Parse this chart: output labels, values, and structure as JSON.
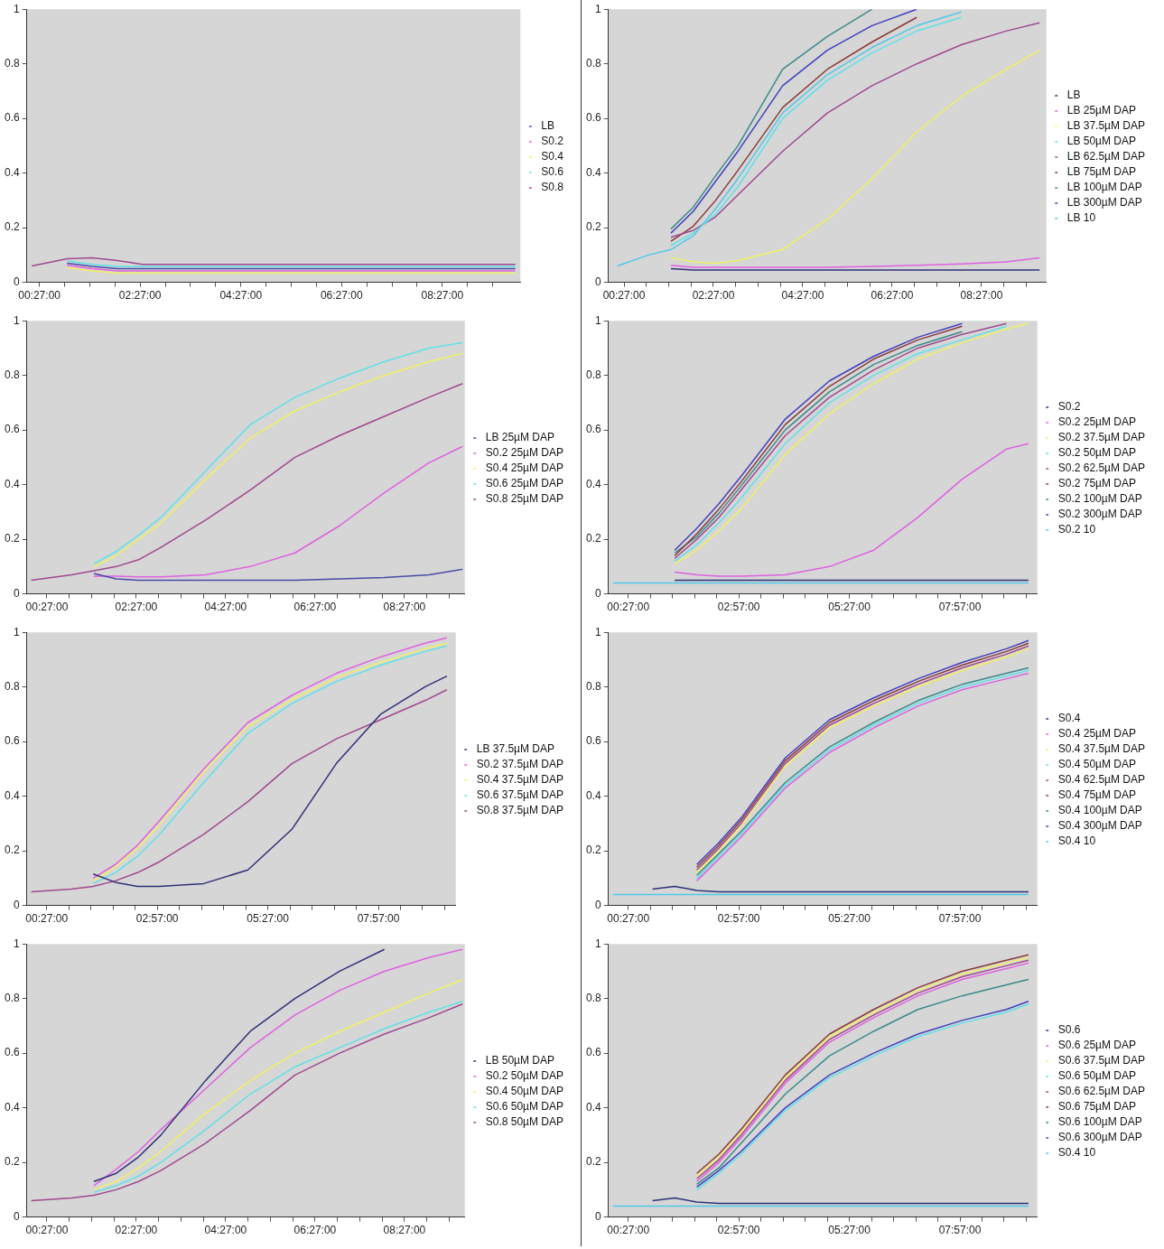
{
  "chart_data": [
    {
      "type": "line",
      "legend": "right",
      "grid": false,
      "marker": "none",
      "xlim": [
        0.2,
        10
      ],
      "ylim": [
        0,
        1
      ],
      "yticks": [
        0,
        0.2,
        0.4,
        0.6,
        0.8,
        1
      ],
      "xticks": [
        {
          "value": 0.45,
          "label": "00:27:00"
        },
        {
          "value": 0.95,
          "label": null
        },
        {
          "value": 1.45,
          "label": null
        },
        {
          "value": 1.95,
          "label": null
        },
        {
          "value": 2.45,
          "label": "02:27:00"
        },
        {
          "value": 2.95,
          "label": null
        },
        {
          "value": 3.45,
          "label": null
        },
        {
          "value": 3.95,
          "label": null
        },
        {
          "value": 4.45,
          "label": "04:27:00"
        },
        {
          "value": 4.95,
          "label": null
        },
        {
          "value": 5.45,
          "label": null
        },
        {
          "value": 5.95,
          "label": null
        },
        {
          "value": 6.45,
          "label": "06:27:00"
        },
        {
          "value": 6.95,
          "label": null
        },
        {
          "value": 7.45,
          "label": null
        },
        {
          "value": 7.95,
          "label": null
        },
        {
          "value": 8.45,
          "label": "08:27:00"
        },
        {
          "value": 8.95,
          "label": null
        },
        {
          "value": 9.45,
          "label": null
        }
      ],
      "x": [
        0.3,
        1,
        1.5,
        2,
        2.5,
        3,
        4,
        5,
        6,
        7,
        8,
        9,
        9.9
      ],
      "series": [
        {
          "name": "LB",
          "color": "#4a4aa8",
          "values": [
            null,
            0.07,
            0.058,
            0.05,
            0.05,
            0.05,
            0.05,
            0.05,
            0.05,
            0.05,
            0.05,
            0.05,
            0.05
          ]
        },
        {
          "name": "S0.2",
          "color": "#e060e0",
          "values": [
            null,
            0.062,
            0.05,
            0.042,
            0.042,
            0.042,
            0.042,
            0.042,
            0.042,
            0.042,
            0.042,
            0.042,
            0.042
          ]
        },
        {
          "name": "S0.4",
          "color": "#f0f060",
          "values": [
            null,
            0.054,
            0.042,
            0.034,
            0.034,
            0.034,
            0.034,
            0.034,
            0.034,
            0.034,
            0.034,
            0.034,
            0.034
          ]
        },
        {
          "name": "S0.6",
          "color": "#60e0e8",
          "values": [
            null,
            0.078,
            0.066,
            0.058,
            0.058,
            0.058,
            0.058,
            0.058,
            0.058,
            0.058,
            0.058,
            0.058,
            0.058
          ]
        },
        {
          "name": "S0.8",
          "color": "#a04890",
          "values": [
            0.06,
            0.086,
            0.09,
            0.08,
            0.066,
            0.066,
            0.066,
            0.066,
            0.066,
            0.066,
            0.066,
            0.066,
            0.066
          ]
        }
      ]
    },
    {
      "type": "line",
      "legend": "right",
      "grid": false,
      "marker": "none",
      "xlim": [
        0.1,
        9.9
      ],
      "ylim": [
        0,
        1
      ],
      "yticks": [
        0,
        0.2,
        0.4,
        0.6,
        0.8,
        1
      ],
      "xticks": [
        {
          "value": 0.45,
          "label": "00:27:00"
        },
        {
          "value": 0.95,
          "label": null
        },
        {
          "value": 1.45,
          "label": null
        },
        {
          "value": 1.95,
          "label": null
        },
        {
          "value": 2.45,
          "label": "02:27:00"
        },
        {
          "value": 2.95,
          "label": null
        },
        {
          "value": 3.45,
          "label": null
        },
        {
          "value": 3.95,
          "label": null
        },
        {
          "value": 4.45,
          "label": "04:27:00"
        },
        {
          "value": 4.95,
          "label": null
        },
        {
          "value": 5.45,
          "label": null
        },
        {
          "value": 5.95,
          "label": null
        },
        {
          "value": 6.45,
          "label": "06:27:00"
        },
        {
          "value": 6.95,
          "label": null
        },
        {
          "value": 7.45,
          "label": null
        },
        {
          "value": 7.95,
          "label": null
        },
        {
          "value": 8.45,
          "label": "08:27:00"
        },
        {
          "value": 8.95,
          "label": null
        },
        {
          "value": 9.45,
          "label": null
        }
      ],
      "x": [
        0.3,
        1,
        1.5,
        2,
        2.5,
        3,
        4,
        5,
        6,
        7,
        8,
        9,
        9.75
      ],
      "series": [
        {
          "name": "LB",
          "color": "#30307a",
          "values": [
            null,
            null,
            0.05,
            0.045,
            0.045,
            0.045,
            0.045,
            0.045,
            0.045,
            0.045,
            0.045,
            0.045,
            0.045
          ]
        },
        {
          "name": "LB 25µM DAP",
          "color": "#e060e0",
          "values": [
            null,
            null,
            0.062,
            0.055,
            0.055,
            0.055,
            0.055,
            0.055,
            0.058,
            0.062,
            0.067,
            0.075,
            0.09
          ]
        },
        {
          "name": "LB 37.5µM DAP",
          "color": "#f0f060",
          "values": [
            null,
            null,
            0.09,
            0.075,
            0.07,
            0.08,
            0.12,
            0.23,
            0.38,
            0.55,
            0.68,
            0.78,
            0.85
          ]
        },
        {
          "name": "LB 50µM DAP",
          "color": "#60e0e8",
          "values": [
            null,
            null,
            0.135,
            0.18,
            0.25,
            0.35,
            0.6,
            0.74,
            0.84,
            0.92,
            0.97,
            null,
            null
          ]
        },
        {
          "name": "LB 62.5µM DAP",
          "color": "#a04890",
          "values": [
            null,
            null,
            0.165,
            0.19,
            0.24,
            0.32,
            0.48,
            0.62,
            0.72,
            0.8,
            0.87,
            0.92,
            0.95
          ]
        },
        {
          "name": "LB 75µM DAP",
          "color": "#8b3a3a",
          "values": [
            null,
            null,
            0.15,
            0.205,
            0.3,
            0.41,
            0.64,
            0.78,
            0.88,
            0.97,
            null,
            null,
            null
          ]
        },
        {
          "name": "LB 100µM DAP",
          "color": "#3a8a8a",
          "values": [
            null,
            null,
            0.195,
            0.275,
            0.39,
            0.5,
            0.78,
            0.9,
            1.0,
            null,
            null,
            null,
            null
          ]
        },
        {
          "name": "LB 300µM DAP",
          "color": "#4040c0",
          "values": [
            null,
            null,
            0.18,
            0.26,
            0.37,
            0.48,
            0.72,
            0.85,
            0.94,
            1.0,
            null,
            null,
            null
          ]
        },
        {
          "name": "LB 10",
          "color": "#50c8e8",
          "values": [
            0.06,
            0.1,
            0.12,
            0.17,
            0.27,
            0.38,
            0.62,
            0.76,
            0.86,
            0.94,
            0.99,
            null,
            null
          ]
        }
      ]
    },
    {
      "type": "line",
      "legend": "right",
      "grid": false,
      "marker": "none",
      "xlim": [
        0,
        9.8
      ],
      "ylim": [
        0,
        1
      ],
      "yticks": [
        0,
        0.2,
        0.4,
        0.6,
        0.8,
        1
      ],
      "xticks": [
        {
          "value": 0.45,
          "label": "00:27:00"
        },
        {
          "value": 0.95,
          "label": null
        },
        {
          "value": 1.45,
          "label": null
        },
        {
          "value": 1.95,
          "label": null
        },
        {
          "value": 2.45,
          "label": "02:27:00"
        },
        {
          "value": 2.95,
          "label": null
        },
        {
          "value": 3.45,
          "label": null
        },
        {
          "value": 3.95,
          "label": null
        },
        {
          "value": 4.45,
          "label": "04:27:00"
        },
        {
          "value": 4.95,
          "label": null
        },
        {
          "value": 5.45,
          "label": null
        },
        {
          "value": 5.95,
          "label": null
        },
        {
          "value": 6.45,
          "label": "06:27:00"
        },
        {
          "value": 6.95,
          "label": null
        },
        {
          "value": 7.45,
          "label": null
        },
        {
          "value": 7.95,
          "label": null
        },
        {
          "value": 8.45,
          "label": "08:27:00"
        },
        {
          "value": 8.95,
          "label": null
        },
        {
          "value": 9.45,
          "label": null
        }
      ],
      "x": [
        0.1,
        1,
        1.5,
        2,
        2.5,
        3,
        4,
        5,
        6,
        7,
        8,
        9,
        9.75
      ],
      "series": [
        {
          "name": "LB 25µM DAP",
          "color": "#4a4aa8",
          "values": [
            null,
            null,
            0.075,
            0.055,
            0.05,
            0.05,
            0.05,
            0.05,
            0.05,
            0.055,
            0.06,
            0.07,
            0.09
          ]
        },
        {
          "name": "S0.2 25µM DAP",
          "color": "#e060e0",
          "values": [
            null,
            null,
            0.065,
            0.065,
            0.062,
            0.062,
            0.07,
            0.1,
            0.15,
            0.25,
            0.37,
            0.48,
            0.54
          ]
        },
        {
          "name": "S0.4 25µM DAP",
          "color": "#f0f060",
          "values": [
            null,
            null,
            0.1,
            0.14,
            0.2,
            0.26,
            0.42,
            0.57,
            0.67,
            0.74,
            0.8,
            0.85,
            0.88
          ]
        },
        {
          "name": "S0.6 25µM DAP",
          "color": "#60e0e8",
          "values": [
            null,
            null,
            0.11,
            0.155,
            0.215,
            0.28,
            0.45,
            0.62,
            0.72,
            0.79,
            0.85,
            0.9,
            0.92
          ]
        },
        {
          "name": "S0.8 25µM DAP",
          "color": "#a04890",
          "values": [
            0.05,
            0.07,
            0.085,
            0.1,
            0.125,
            0.17,
            0.27,
            0.38,
            0.5,
            0.58,
            0.65,
            0.72,
            0.77
          ]
        }
      ]
    },
    {
      "type": "line",
      "legend": "right",
      "grid": false,
      "marker": "none",
      "xlim": [
        0,
        9.7
      ],
      "ylim": [
        0,
        1
      ],
      "yticks": [
        0,
        0.2,
        0.4,
        0.6,
        0.8,
        1
      ],
      "xticks": [
        {
          "value": 0.45,
          "label": "00:27:00"
        },
        {
          "value": 0.95,
          "label": null
        },
        {
          "value": 1.45,
          "label": null
        },
        {
          "value": 1.95,
          "label": null
        },
        {
          "value": 2.45,
          "label": null
        },
        {
          "value": 2.95,
          "label": "02:57:00"
        },
        {
          "value": 3.45,
          "label": null
        },
        {
          "value": 3.95,
          "label": null
        },
        {
          "value": 4.45,
          "label": null
        },
        {
          "value": 4.95,
          "label": null
        },
        {
          "value": 5.45,
          "label": "05:27:00"
        },
        {
          "value": 5.95,
          "label": null
        },
        {
          "value": 6.45,
          "label": null
        },
        {
          "value": 6.95,
          "label": null
        },
        {
          "value": 7.45,
          "label": null
        },
        {
          "value": 7.95,
          "label": "07:57:00"
        },
        {
          "value": 8.45,
          "label": null
        },
        {
          "value": 8.95,
          "label": null
        },
        {
          "value": 9.45,
          "label": null
        }
      ],
      "x": [
        0.1,
        1,
        1.5,
        2,
        2.5,
        3,
        4,
        5,
        6,
        7,
        8,
        9,
        9.5
      ],
      "series": [
        {
          "name": "S0.2",
          "color": "#30307a",
          "values": [
            null,
            null,
            0.05,
            0.05,
            0.05,
            0.05,
            0.05,
            0.05,
            0.05,
            0.05,
            0.05,
            0.05,
            0.05
          ]
        },
        {
          "name": "S0.2 25µM DAP",
          "color": "#e060e0",
          "values": [
            null,
            null,
            0.08,
            0.07,
            0.065,
            0.065,
            0.07,
            0.1,
            0.16,
            0.28,
            0.42,
            0.53,
            0.55
          ]
        },
        {
          "name": "S0.2 37.5µM DAP",
          "color": "#f0f060",
          "values": [
            null,
            null,
            0.11,
            0.16,
            0.23,
            0.31,
            0.51,
            0.66,
            0.77,
            0.86,
            0.92,
            0.97,
            0.99
          ]
        },
        {
          "name": "S0.2 50µM DAP",
          "color": "#60e0e8",
          "values": [
            null,
            null,
            0.12,
            0.18,
            0.26,
            0.35,
            0.55,
            0.7,
            0.8,
            0.88,
            0.93,
            0.98,
            null
          ]
        },
        {
          "name": "S0.2 62.5µM DAP",
          "color": "#a04890",
          "values": [
            null,
            null,
            0.13,
            0.2,
            0.28,
            0.38,
            0.58,
            0.72,
            0.82,
            0.9,
            0.95,
            0.99,
            null
          ]
        },
        {
          "name": "S0.2 75µM DAP",
          "color": "#8b3a3a",
          "values": [
            null,
            null,
            0.14,
            0.22,
            0.31,
            0.41,
            0.62,
            0.76,
            0.86,
            0.93,
            0.98,
            null,
            null
          ]
        },
        {
          "name": "S0.2 100µM DAP",
          "color": "#3a8a8a",
          "values": [
            null,
            null,
            0.15,
            0.21,
            0.295,
            0.395,
            0.6,
            0.74,
            0.84,
            0.91,
            0.96,
            null,
            null
          ]
        },
        {
          "name": "S0.2 300µM DAP",
          "color": "#4040c0",
          "values": [
            null,
            null,
            0.16,
            0.24,
            0.33,
            0.43,
            0.64,
            0.78,
            0.87,
            0.94,
            0.99,
            null,
            null
          ]
        },
        {
          "name": "S0.2 10",
          "color": "#50c8e8",
          "values": [
            0.04,
            0.04,
            0.04,
            0.04,
            0.04,
            0.04,
            0.04,
            0.04,
            0.04,
            0.04,
            0.04,
            0.04,
            0.04
          ]
        }
      ]
    },
    {
      "type": "line",
      "legend": "right",
      "grid": false,
      "marker": "none",
      "xlim": [
        0,
        9.7
      ],
      "ylim": [
        0,
        1
      ],
      "yticks": [
        0,
        0.2,
        0.4,
        0.6,
        0.8,
        1
      ],
      "xticks": [
        {
          "value": 0.45,
          "label": "00:27:00"
        },
        {
          "value": 0.95,
          "label": null
        },
        {
          "value": 1.45,
          "label": null
        },
        {
          "value": 1.95,
          "label": null
        },
        {
          "value": 2.45,
          "label": null
        },
        {
          "value": 2.95,
          "label": "02:57:00"
        },
        {
          "value": 3.45,
          "label": null
        },
        {
          "value": 3.95,
          "label": null
        },
        {
          "value": 4.45,
          "label": null
        },
        {
          "value": 4.95,
          "label": null
        },
        {
          "value": 5.45,
          "label": "05:27:00"
        },
        {
          "value": 5.95,
          "label": null
        },
        {
          "value": 6.45,
          "label": null
        },
        {
          "value": 6.95,
          "label": null
        },
        {
          "value": 7.45,
          "label": null
        },
        {
          "value": 7.95,
          "label": "07:57:00"
        },
        {
          "value": 8.45,
          "label": null
        },
        {
          "value": 8.95,
          "label": null
        },
        {
          "value": 9.45,
          "label": null
        }
      ],
      "x": [
        0.1,
        1,
        1.5,
        2,
        2.5,
        3,
        4,
        5,
        6,
        7,
        8,
        9,
        9.5
      ],
      "series": [
        {
          "name": "LB 37.5µM DAP",
          "color": "#30307a",
          "values": [
            null,
            null,
            0.115,
            0.085,
            0.07,
            0.07,
            0.08,
            0.13,
            0.28,
            0.52,
            0.7,
            0.8,
            0.84
          ]
        },
        {
          "name": "S0.2 37.5µM DAP",
          "color": "#e060e0",
          "values": [
            null,
            null,
            0.1,
            0.15,
            0.22,
            0.31,
            0.5,
            0.67,
            0.77,
            0.85,
            0.91,
            0.96,
            0.98
          ]
        },
        {
          "name": "S0.4 37.5µM DAP",
          "color": "#f0f060",
          "values": [
            null,
            null,
            0.09,
            0.14,
            0.21,
            0.295,
            0.49,
            0.655,
            0.755,
            0.835,
            0.89,
            0.94,
            0.96
          ]
        },
        {
          "name": "S0.6 37.5µM DAP",
          "color": "#60e0e8",
          "values": [
            null,
            null,
            0.08,
            0.12,
            0.18,
            0.26,
            0.45,
            0.63,
            0.74,
            0.82,
            0.88,
            0.93,
            0.95
          ]
        },
        {
          "name": "S0.8 37.5µM DAP",
          "color": "#a04890",
          "values": [
            0.05,
            0.06,
            0.07,
            0.09,
            0.12,
            0.16,
            0.26,
            0.38,
            0.52,
            0.61,
            0.68,
            0.75,
            0.79
          ]
        }
      ]
    },
    {
      "type": "line",
      "legend": "right",
      "grid": false,
      "marker": "none",
      "xlim": [
        0,
        9.7
      ],
      "ylim": [
        0,
        1
      ],
      "yticks": [
        0,
        0.2,
        0.4,
        0.6,
        0.8,
        1
      ],
      "xticks": [
        {
          "value": 0.45,
          "label": "00:27:00"
        },
        {
          "value": 0.95,
          "label": null
        },
        {
          "value": 1.45,
          "label": null
        },
        {
          "value": 1.95,
          "label": null
        },
        {
          "value": 2.45,
          "label": null
        },
        {
          "value": 2.95,
          "label": "02:57:00"
        },
        {
          "value": 3.45,
          "label": null
        },
        {
          "value": 3.95,
          "label": null
        },
        {
          "value": 4.45,
          "label": null
        },
        {
          "value": 4.95,
          "label": null
        },
        {
          "value": 5.45,
          "label": "05:27:00"
        },
        {
          "value": 5.95,
          "label": null
        },
        {
          "value": 6.45,
          "label": null
        },
        {
          "value": 6.95,
          "label": null
        },
        {
          "value": 7.45,
          "label": null
        },
        {
          "value": 7.95,
          "label": "07:57:00"
        },
        {
          "value": 8.45,
          "label": null
        },
        {
          "value": 8.95,
          "label": null
        },
        {
          "value": 9.45,
          "label": null
        }
      ],
      "x": [
        0.1,
        1,
        1.5,
        2,
        2.5,
        3,
        4,
        5,
        6,
        7,
        8,
        9,
        9.5
      ],
      "series": [
        {
          "name": "S0.4",
          "color": "#30307a",
          "values": [
            null,
            0.06,
            0.07,
            0.055,
            0.05,
            0.05,
            0.05,
            0.05,
            0.05,
            0.05,
            0.05,
            0.05,
            0.05
          ]
        },
        {
          "name": "S0.4 25µM DAP",
          "color": "#e060e0",
          "values": [
            null,
            null,
            null,
            0.09,
            0.17,
            0.25,
            0.43,
            0.56,
            0.65,
            0.73,
            0.79,
            0.83,
            0.85
          ]
        },
        {
          "name": "S0.4 37.5µM DAP",
          "color": "#f0f060",
          "values": [
            null,
            null,
            null,
            0.12,
            0.2,
            0.29,
            0.51,
            0.65,
            0.73,
            0.8,
            0.86,
            0.91,
            0.94
          ]
        },
        {
          "name": "S0.4 50µM DAP",
          "color": "#60e0e8",
          "values": [
            null,
            null,
            null,
            0.1,
            0.18,
            0.26,
            0.44,
            0.57,
            0.66,
            0.74,
            0.8,
            0.84,
            0.86
          ]
        },
        {
          "name": "S0.4 62.5µM DAP",
          "color": "#a04890",
          "values": [
            null,
            null,
            null,
            0.13,
            0.21,
            0.3,
            0.52,
            0.66,
            0.74,
            0.81,
            0.87,
            0.92,
            0.95
          ]
        },
        {
          "name": "S0.4 75µM DAP",
          "color": "#8b3a3a",
          "values": [
            null,
            null,
            null,
            0.14,
            0.22,
            0.31,
            0.53,
            0.67,
            0.75,
            0.82,
            0.88,
            0.93,
            0.96
          ]
        },
        {
          "name": "S0.4 100µM DAP",
          "color": "#3a8a8a",
          "values": [
            null,
            null,
            null,
            0.11,
            0.19,
            0.27,
            0.45,
            0.58,
            0.67,
            0.75,
            0.81,
            0.85,
            0.87
          ]
        },
        {
          "name": "S0.4 300µM DAP",
          "color": "#4040c0",
          "values": [
            null,
            null,
            null,
            0.15,
            0.23,
            0.32,
            0.54,
            0.68,
            0.76,
            0.83,
            0.89,
            0.94,
            0.97
          ]
        },
        {
          "name": "S0.4 10",
          "color": "#50c8e8",
          "values": [
            0.04,
            0.04,
            0.04,
            0.04,
            0.04,
            0.04,
            0.04,
            0.04,
            0.04,
            0.04,
            0.04,
            0.04,
            0.04
          ]
        }
      ]
    },
    {
      "type": "line",
      "legend": "right",
      "grid": false,
      "marker": "none",
      "xlim": [
        0,
        9.8
      ],
      "ylim": [
        0,
        1
      ],
      "yticks": [
        0,
        0.2,
        0.4,
        0.6,
        0.8,
        1
      ],
      "xticks": [
        {
          "value": 0.45,
          "label": "00:27:00"
        },
        {
          "value": 0.95,
          "label": null
        },
        {
          "value": 1.45,
          "label": null
        },
        {
          "value": 1.95,
          "label": null
        },
        {
          "value": 2.45,
          "label": "02:27:00"
        },
        {
          "value": 2.95,
          "label": null
        },
        {
          "value": 3.45,
          "label": null
        },
        {
          "value": 3.95,
          "label": null
        },
        {
          "value": 4.45,
          "label": "04:27:00"
        },
        {
          "value": 4.95,
          "label": null
        },
        {
          "value": 5.45,
          "label": null
        },
        {
          "value": 5.95,
          "label": null
        },
        {
          "value": 6.45,
          "label": "06:27:00"
        },
        {
          "value": 6.95,
          "label": null
        },
        {
          "value": 7.45,
          "label": null
        },
        {
          "value": 7.95,
          "label": null
        },
        {
          "value": 8.45,
          "label": "08:27:00"
        },
        {
          "value": 8.95,
          "label": null
        },
        {
          "value": 9.45,
          "label": null
        }
      ],
      "x": [
        0.1,
        1,
        1.5,
        2,
        2.5,
        3,
        4,
        5,
        6,
        7,
        8,
        9,
        9.75
      ],
      "series": [
        {
          "name": "LB 50µM DAP",
          "color": "#30307a",
          "values": [
            null,
            null,
            0.13,
            0.16,
            0.22,
            0.3,
            0.5,
            0.68,
            0.8,
            0.9,
            0.98,
            null,
            null
          ]
        },
        {
          "name": "S0.2 50µM DAP",
          "color": "#e060e0",
          "values": [
            null,
            null,
            0.115,
            0.175,
            0.24,
            0.32,
            0.47,
            0.62,
            0.74,
            0.83,
            0.9,
            0.95,
            0.98
          ]
        },
        {
          "name": "S0.4 50µM DAP",
          "color": "#f0f060",
          "values": [
            null,
            null,
            0.1,
            0.13,
            0.18,
            0.24,
            0.38,
            0.5,
            0.6,
            0.68,
            0.75,
            0.82,
            0.87
          ]
        },
        {
          "name": "S0.6 50µM DAP",
          "color": "#60e0e8",
          "values": [
            null,
            null,
            0.09,
            0.115,
            0.15,
            0.2,
            0.32,
            0.45,
            0.55,
            0.62,
            0.69,
            0.75,
            0.79
          ]
        },
        {
          "name": "S0.8 50µM DAP",
          "color": "#a04890",
          "values": [
            0.06,
            0.07,
            0.08,
            0.1,
            0.13,
            0.17,
            0.27,
            0.39,
            0.52,
            0.6,
            0.67,
            0.73,
            0.78
          ]
        }
      ]
    },
    {
      "type": "line",
      "legend": "right",
      "grid": false,
      "marker": "none",
      "xlim": [
        0,
        9.7
      ],
      "ylim": [
        0,
        1
      ],
      "yticks": [
        0,
        0.2,
        0.4,
        0.6,
        0.8,
        1
      ],
      "xticks": [
        {
          "value": 0.45,
          "label": "00:27:00"
        },
        {
          "value": 0.95,
          "label": null
        },
        {
          "value": 1.45,
          "label": null
        },
        {
          "value": 1.95,
          "label": null
        },
        {
          "value": 2.45,
          "label": null
        },
        {
          "value": 2.95,
          "label": "02:57:00"
        },
        {
          "value": 3.45,
          "label": null
        },
        {
          "value": 3.95,
          "label": null
        },
        {
          "value": 4.45,
          "label": null
        },
        {
          "value": 4.95,
          "label": null
        },
        {
          "value": 5.45,
          "label": "05:27:00"
        },
        {
          "value": 5.95,
          "label": null
        },
        {
          "value": 6.45,
          "label": null
        },
        {
          "value": 6.95,
          "label": null
        },
        {
          "value": 7.45,
          "label": null
        },
        {
          "value": 7.95,
          "label": "07:57:00"
        },
        {
          "value": 8.45,
          "label": null
        },
        {
          "value": 8.95,
          "label": null
        },
        {
          "value": 9.45,
          "label": null
        }
      ],
      "x": [
        0.1,
        1,
        1.5,
        2,
        2.5,
        3,
        4,
        5,
        6,
        7,
        8,
        9,
        9.5
      ],
      "series": [
        {
          "name": "S0.6",
          "color": "#30307a",
          "values": [
            null,
            0.06,
            0.07,
            0.055,
            0.05,
            0.05,
            0.05,
            0.05,
            0.05,
            0.05,
            0.05,
            0.05,
            0.05
          ]
        },
        {
          "name": "S0.6 25µM DAP",
          "color": "#e060e0",
          "values": [
            null,
            null,
            null,
            0.13,
            0.2,
            0.29,
            0.49,
            0.64,
            0.73,
            0.81,
            0.87,
            0.91,
            0.93
          ]
        },
        {
          "name": "S0.6 37.5µM DAP",
          "color": "#f0f060",
          "values": [
            null,
            null,
            null,
            0.15,
            0.22,
            0.31,
            0.51,
            0.66,
            0.75,
            0.83,
            0.89,
            0.93,
            0.95
          ]
        },
        {
          "name": "S0.6 50µM DAP",
          "color": "#60e0e8",
          "values": [
            null,
            null,
            null,
            0.1,
            0.16,
            0.23,
            0.39,
            0.51,
            0.59,
            0.66,
            0.71,
            0.75,
            0.78
          ]
        },
        {
          "name": "S0.6 62.5µM DAP",
          "color": "#a04890",
          "values": [
            null,
            null,
            null,
            0.14,
            0.21,
            0.3,
            0.5,
            0.65,
            0.74,
            0.82,
            0.88,
            0.92,
            0.94
          ]
        },
        {
          "name": "S0.6 75µM DAP",
          "color": "#8b3a3a",
          "values": [
            null,
            null,
            null,
            0.16,
            0.23,
            0.32,
            0.52,
            0.67,
            0.76,
            0.84,
            0.9,
            0.94,
            0.96
          ]
        },
        {
          "name": "S0.6 100µM DAP",
          "color": "#3a8a8a",
          "values": [
            null,
            null,
            null,
            0.12,
            0.18,
            0.27,
            0.45,
            0.59,
            0.68,
            0.76,
            0.81,
            0.85,
            0.87
          ]
        },
        {
          "name": "S0.6 300µM DAP",
          "color": "#4040c0",
          "values": [
            null,
            null,
            null,
            0.11,
            0.17,
            0.24,
            0.4,
            0.52,
            0.6,
            0.67,
            0.72,
            0.76,
            0.79
          ]
        },
        {
          "name": "S0.4 10",
          "color": "#50c8e8",
          "values": [
            0.04,
            0.04,
            0.04,
            0.04,
            0.04,
            0.04,
            0.04,
            0.04,
            0.04,
            0.04,
            0.04,
            0.04,
            0.04
          ]
        }
      ]
    }
  ]
}
